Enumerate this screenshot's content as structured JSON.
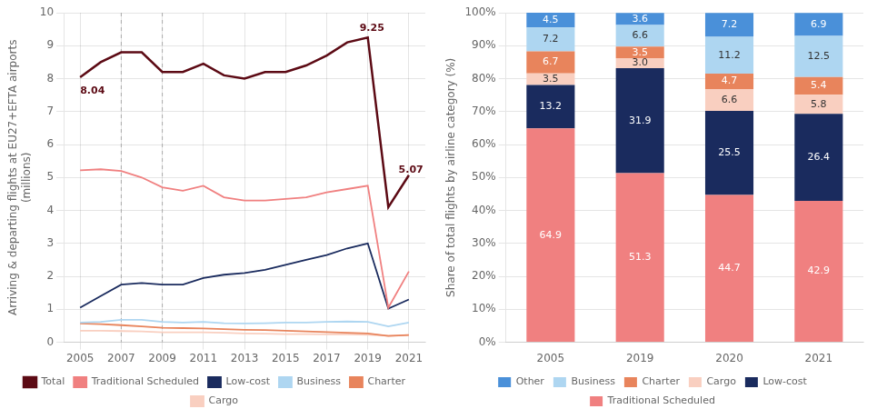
{
  "chart_data": [
    {
      "type": "line",
      "x": [
        2005,
        2006,
        2007,
        2008,
        2009,
        2010,
        2011,
        2012,
        2013,
        2014,
        2015,
        2016,
        2017,
        2018,
        2019,
        2020,
        2021
      ],
      "y_label": "Arriving & departing flights at EU27+EFTA airports\n(millions)",
      "series": [
        {
          "name": "Total",
          "color": "#5c0a14",
          "values": [
            8.04,
            8.5,
            8.8,
            8.8,
            8.2,
            8.2,
            8.45,
            8.1,
            8.0,
            8.2,
            8.2,
            8.4,
            8.7,
            9.1,
            9.25,
            4.1,
            5.07
          ]
        },
        {
          "name": "Traditional Scheduled",
          "color": "#f08080",
          "values": [
            5.22,
            5.25,
            5.2,
            5.0,
            4.7,
            4.6,
            4.75,
            4.4,
            4.3,
            4.3,
            4.35,
            4.4,
            4.55,
            4.65,
            4.75,
            1.05,
            2.15
          ]
        },
        {
          "name": "Low-cost",
          "color": "#1a2b5e",
          "values": [
            1.05,
            1.4,
            1.75,
            1.8,
            1.75,
            1.75,
            1.95,
            2.05,
            2.1,
            2.2,
            2.35,
            2.5,
            2.65,
            2.85,
            3.0,
            1.02,
            1.3
          ]
        },
        {
          "name": "Business",
          "color": "#aed6f1",
          "values": [
            0.6,
            0.62,
            0.68,
            0.68,
            0.62,
            0.6,
            0.62,
            0.58,
            0.57,
            0.58,
            0.6,
            0.6,
            0.62,
            0.63,
            0.62,
            0.48,
            0.6
          ]
        },
        {
          "name": "Charter",
          "color": "#e8845c",
          "values": [
            0.57,
            0.55,
            0.52,
            0.48,
            0.44,
            0.43,
            0.42,
            0.4,
            0.38,
            0.37,
            0.35,
            0.33,
            0.31,
            0.29,
            0.27,
            0.19,
            0.22
          ]
        },
        {
          "name": "Cargo",
          "color": "#f9cfc0",
          "values": [
            0.35,
            0.35,
            0.34,
            0.33,
            0.3,
            0.3,
            0.3,
            0.29,
            0.27,
            0.26,
            0.25,
            0.25,
            0.24,
            0.24,
            0.23,
            0.2,
            0.22
          ]
        }
      ],
      "vlines": [
        2007,
        2009
      ],
      "annotations": [
        {
          "text": "8.04",
          "x": 2005,
          "y": 7.55,
          "color": "#5c0a14"
        },
        {
          "text": "9.25",
          "x": 2018.6,
          "y": 9.45,
          "color": "#5c0a14"
        },
        {
          "text": "5.07",
          "x": 2020.5,
          "y": 5.15,
          "color": "#5c0a14"
        }
      ],
      "xlim": [
        2004.2,
        2021.8
      ],
      "xticks": [
        2005,
        2007,
        2009,
        2011,
        2013,
        2015,
        2017,
        2019,
        2021
      ],
      "ylim": [
        0,
        10
      ],
      "yticks": [
        0,
        1,
        2,
        3,
        4,
        5,
        6,
        7,
        8,
        9,
        10
      ],
      "grid": true,
      "legend": "bottom"
    },
    {
      "type": "bar",
      "stacked": true,
      "categories": [
        "2005",
        "2019",
        "2020",
        "2021"
      ],
      "y_label": "Share of total flights by airline category (%)",
      "series": [
        {
          "name": "Traditional Scheduled",
          "color": "#f08080",
          "values": [
            64.9,
            51.3,
            44.7,
            42.9
          ]
        },
        {
          "name": "Low-cost",
          "color": "#1a2b5e",
          "values": [
            13.2,
            31.9,
            25.5,
            26.4
          ]
        },
        {
          "name": "Cargo",
          "color": "#f9cfc0",
          "values": [
            3.5,
            3.0,
            6.6,
            5.8
          ],
          "value_labels": [
            "3.5",
            "3.0",
            "6.6",
            "5.8"
          ]
        },
        {
          "name": "Charter",
          "color": "#e8845c",
          "values": [
            6.7,
            3.5,
            4.7,
            5.4
          ]
        },
        {
          "name": "Business",
          "color": "#aed6f1",
          "values": [
            7.2,
            6.6,
            11.2,
            12.5
          ]
        },
        {
          "name": "Other",
          "color": "#4a90d9",
          "values": [
            4.5,
            3.6,
            7.2,
            6.9
          ]
        }
      ],
      "ylim": [
        0,
        100
      ],
      "yticks": [
        {
          "value": 0,
          "label": "0%"
        },
        {
          "value": 10,
          "label": "10%"
        },
        {
          "value": 20,
          "label": "20%"
        },
        {
          "value": 30,
          "label": "30%"
        },
        {
          "value": 40,
          "label": "40%"
        },
        {
          "value": 50,
          "label": "50%"
        },
        {
          "value": 60,
          "label": "60%"
        },
        {
          "value": 70,
          "label": "70%"
        },
        {
          "value": 80,
          "label": "80%"
        },
        {
          "value": 90,
          "label": "90%"
        },
        {
          "value": 100,
          "label": "100%"
        }
      ],
      "data_labels": true,
      "grid": "y",
      "legend": "bottom"
    }
  ]
}
